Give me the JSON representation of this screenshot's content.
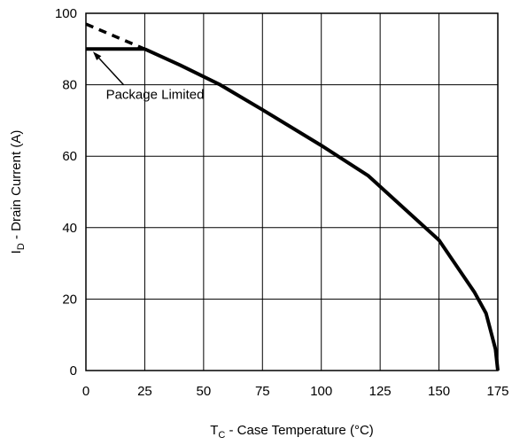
{
  "chart_data": {
    "type": "line",
    "xlabel": {
      "main": "T",
      "sub": "C",
      "rest": " - Case Temperature (°C)"
    },
    "ylabel": {
      "main": "I",
      "sub": "D",
      "rest": " - Drain Current (A)"
    },
    "xlim": [
      0,
      175
    ],
    "ylim": [
      0,
      100
    ],
    "xticks": [
      0,
      25,
      50,
      75,
      100,
      125,
      150,
      175
    ],
    "yticks": [
      0,
      20,
      40,
      60,
      80,
      100
    ],
    "x_tick_labels": [
      "0",
      "25",
      "50",
      "75",
      "100",
      "125",
      "150",
      "175"
    ],
    "y_tick_labels": [
      "0",
      "20",
      "40",
      "60",
      "80",
      "100"
    ],
    "grid": true,
    "series": [
      {
        "style": "solid",
        "x": [
          25,
          40,
          57,
          75,
          100,
          120,
          150,
          165,
          170,
          172,
          174,
          175
        ],
        "y": [
          90,
          85.5,
          80,
          73,
          63,
          54.5,
          36.5,
          22,
          16,
          11,
          6,
          0
        ]
      },
      {
        "style": "dashed",
        "x": [
          0,
          25
        ],
        "y": [
          97,
          90
        ]
      },
      {
        "style": "solid",
        "x": [
          0,
          25
        ],
        "y": [
          90,
          90
        ]
      }
    ],
    "annotations": [
      {
        "text": "Package Limited",
        "x": 8.5,
        "y": 76,
        "arrow_to": [
          3,
          90
        ]
      }
    ]
  }
}
